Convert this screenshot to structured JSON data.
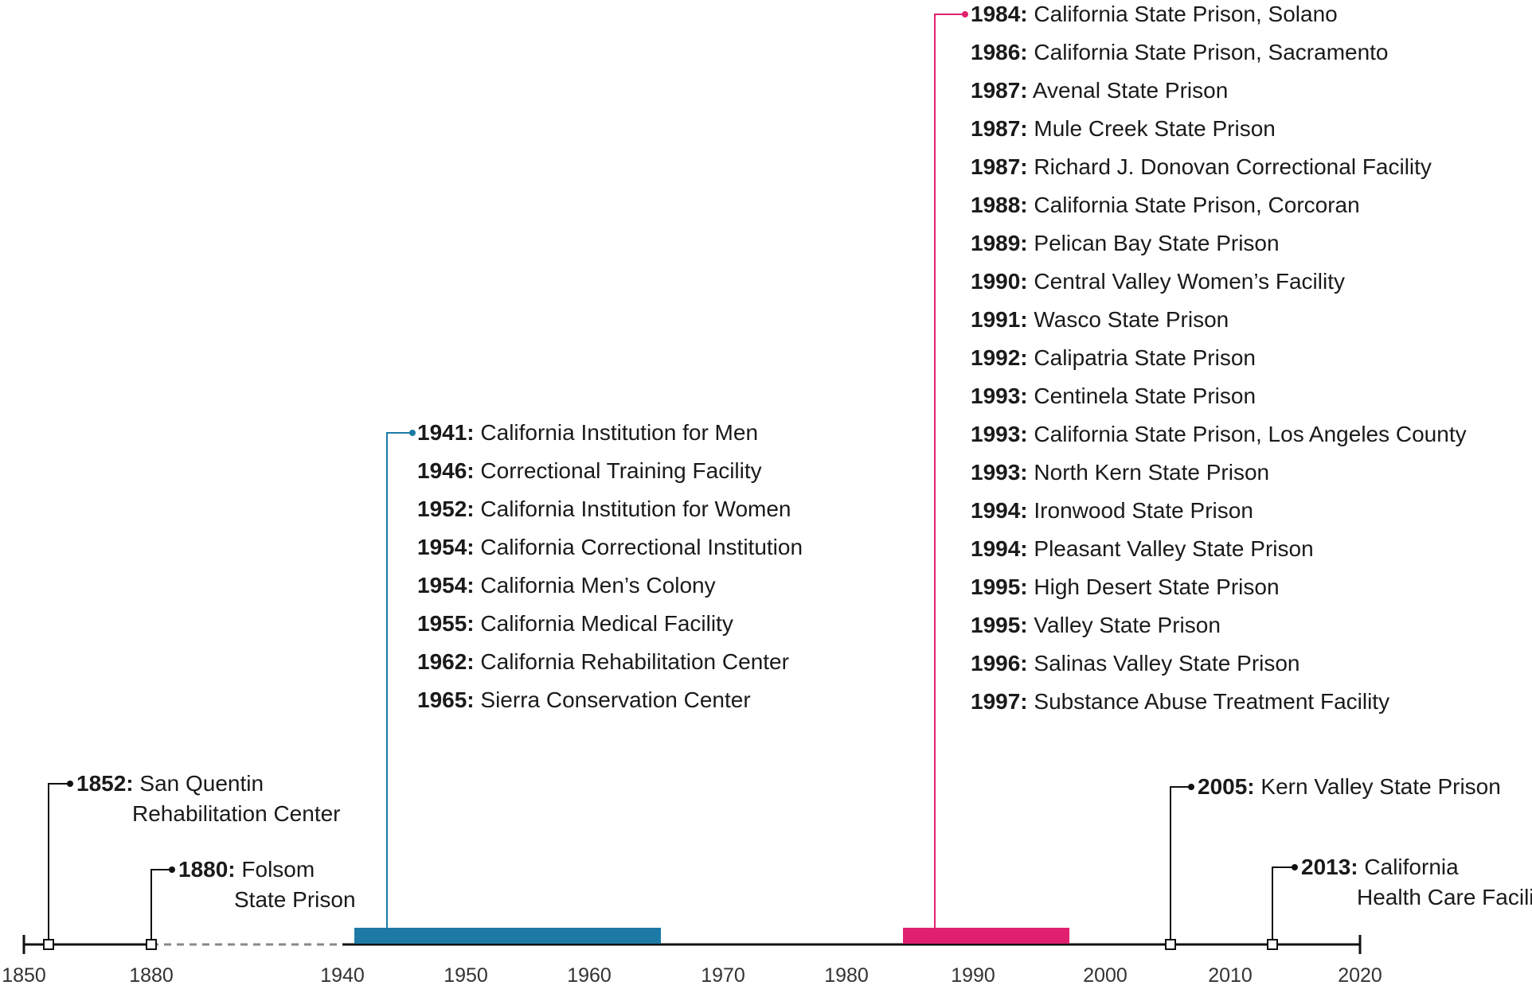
{
  "axis": {
    "ticks_left": [
      "1850",
      "1880"
    ],
    "ticks_right": [
      "1940",
      "1950",
      "1960",
      "1970",
      "1980",
      "1990",
      "2000",
      "2010",
      "2020"
    ]
  },
  "colors": {
    "axis": "#111111",
    "dashed_gap": "#888888",
    "wave_1940s_60s": "#1d7aa6",
    "wave_1980s_90s": "#e0206e"
  },
  "single_events": [
    {
      "year": "1852:",
      "name_line1": "San Quentin",
      "name_line2": "Rehabilitation Center"
    },
    {
      "year": "1880:",
      "name_line1": "Folsom",
      "name_line2": "State Prison"
    },
    {
      "year": "2005:",
      "name_line1": "Kern Valley State Prison",
      "name_line2": ""
    },
    {
      "year": "2013:",
      "name_line1": "California",
      "name_line2": "Health Care Facility"
    }
  ],
  "blue_group": [
    {
      "year": "1941:",
      "name": "California Institution for Men"
    },
    {
      "year": "1946:",
      "name": "Correctional Training Facility"
    },
    {
      "year": "1952:",
      "name": "California Institution for Women"
    },
    {
      "year": "1954:",
      "name": "California Correctional Institution"
    },
    {
      "year": "1954:",
      "name": "California Men’s Colony"
    },
    {
      "year": "1955:",
      "name": "California Medical Facility"
    },
    {
      "year": "1962:",
      "name": "California Rehabilitation Center"
    },
    {
      "year": "1965:",
      "name": "Sierra Conservation Center"
    }
  ],
  "pink_group": [
    {
      "year": "1984:",
      "name": "California State Prison, Solano"
    },
    {
      "year": "1986:",
      "name": "California State Prison, Sacramento"
    },
    {
      "year": "1987:",
      "name": "Avenal State Prison"
    },
    {
      "year": "1987:",
      "name": "Mule Creek State Prison"
    },
    {
      "year": "1987:",
      "name": "Richard J. Donovan Correctional Facility"
    },
    {
      "year": "1988:",
      "name": "California State Prison, Corcoran"
    },
    {
      "year": "1989:",
      "name": "Pelican Bay State Prison"
    },
    {
      "year": "1990:",
      "name": "Central Valley Women’s Facility"
    },
    {
      "year": "1991:",
      "name": "Wasco State Prison"
    },
    {
      "year": "1992:",
      "name": "Calipatria State Prison"
    },
    {
      "year": "1993:",
      "name": "Centinela State Prison"
    },
    {
      "year": "1993:",
      "name": "California State Prison, Los Angeles County"
    },
    {
      "year": "1993:",
      "name": "North Kern State Prison"
    },
    {
      "year": "1994:",
      "name": "Ironwood State Prison"
    },
    {
      "year": "1994:",
      "name": "Pleasant Valley State Prison"
    },
    {
      "year": "1995:",
      "name": "High Desert State Prison"
    },
    {
      "year": "1995:",
      "name": "Valley State Prison"
    },
    {
      "year": "1996:",
      "name": "Salinas Valley State Prison"
    },
    {
      "year": "1997:",
      "name": "Substance Abuse Treatment Facility"
    }
  ]
}
